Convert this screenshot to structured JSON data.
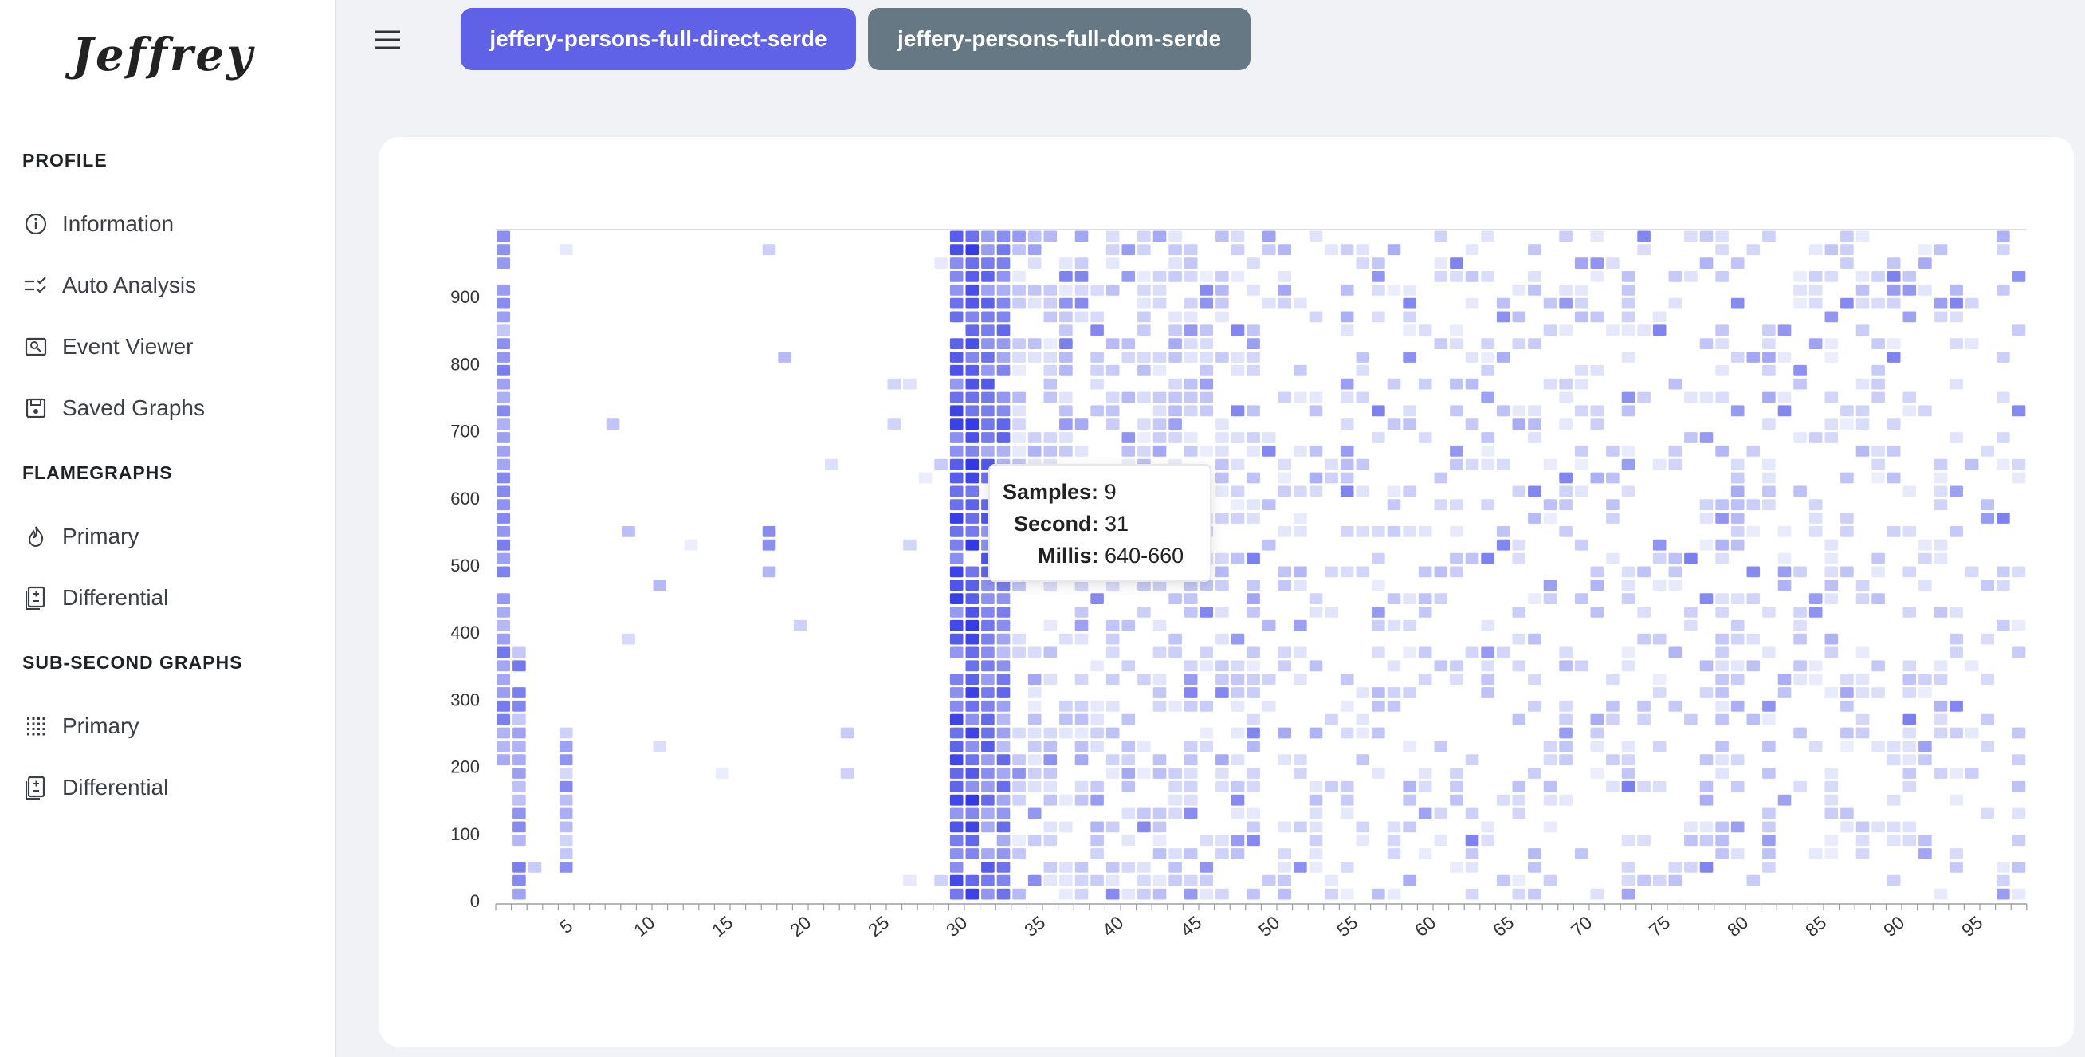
{
  "app": {
    "logo_text": "Jeffrey"
  },
  "sidebar": {
    "sections": [
      {
        "title": "PROFILE",
        "items": [
          {
            "label": "Information",
            "icon": "info-icon"
          },
          {
            "label": "Auto Analysis",
            "icon": "checklist-icon"
          },
          {
            "label": "Event Viewer",
            "icon": "event-viewer-icon"
          },
          {
            "label": "Saved Graphs",
            "icon": "save-icon"
          }
        ]
      },
      {
        "title": "FLAMEGRAPHS",
        "items": [
          {
            "label": "Primary",
            "icon": "flame-icon"
          },
          {
            "label": "Differential",
            "icon": "diff-document-icon"
          }
        ]
      },
      {
        "title": "SUB-SECOND GRAPHS",
        "items": [
          {
            "label": "Primary",
            "icon": "grid-dots-icon"
          },
          {
            "label": "Differential",
            "icon": "diff-document-icon"
          }
        ]
      }
    ]
  },
  "tabs": [
    {
      "label": "jeffery-persons-full-direct-serde",
      "active": true,
      "color": "#5f61e6"
    },
    {
      "label": "jeffery-persons-full-dom-serde",
      "active": false,
      "color": "#657883"
    }
  ],
  "tooltip": {
    "samples_label": "Samples:",
    "samples_value": "9",
    "second_label": "Second:",
    "second_value": "31",
    "millis_label": "Millis:",
    "millis_value": "640-660"
  },
  "chart_data": {
    "type": "heatmap",
    "x_label": "",
    "y_label": "",
    "x_range": [
      1,
      98
    ],
    "y_range": [
      0,
      1000
    ],
    "bucket_ms": 20,
    "x_ticks": [
      5,
      10,
      15,
      20,
      25,
      30,
      35,
      40,
      45,
      50,
      55,
      60,
      65,
      70,
      75,
      80,
      85,
      90,
      95
    ],
    "y_ticks": [
      0,
      100,
      200,
      300,
      400,
      500,
      600,
      700,
      800,
      900
    ],
    "color_scale": {
      "low": "#eceefc",
      "high": "#2f35e6"
    },
    "grid": false,
    "legend": "none",
    "hot_columns": [
      {
        "second": 1,
        "ms_range": [
          200,
          1000
        ],
        "intensity": 0.45
      },
      {
        "second": 2,
        "ms_range": [
          0,
          380
        ],
        "intensity": 0.45
      },
      {
        "second": 5,
        "ms_range": [
          40,
          260
        ],
        "intensity": 0.35
      },
      {
        "second": 18,
        "ms_range": [
          480,
          560
        ],
        "intensity": 0.45
      },
      {
        "second": 30,
        "ms_range": [
          0,
          1000
        ],
        "intensity": 0.7
      },
      {
        "second": 31,
        "ms_range": [
          0,
          1000
        ],
        "intensity": 0.75
      },
      {
        "second": 32,
        "ms_range": [
          0,
          1000
        ],
        "intensity": 0.6
      },
      {
        "second": 33,
        "ms_range": [
          0,
          1000
        ],
        "intensity": 0.5
      }
    ]
  }
}
